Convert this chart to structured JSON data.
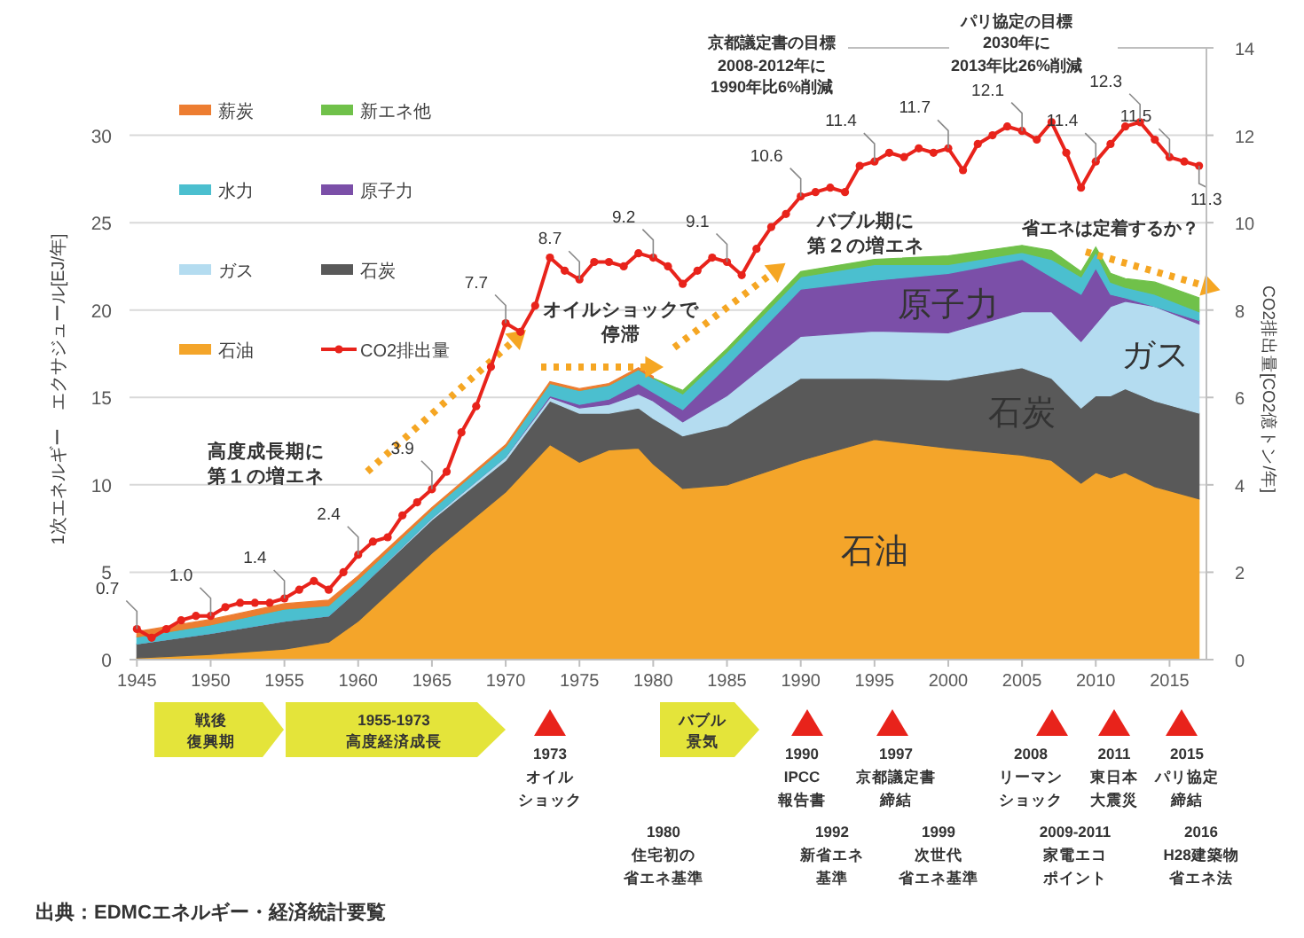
{
  "chart_data": {
    "type": "area",
    "stacked": true,
    "ylabel": "1次エネルギー　エクサジュール[EJ/年]",
    "y2label": "CO2排出量[CO2億トン/年]",
    "xlim": [
      1944.5,
      2017.5
    ],
    "xticks": [
      1945,
      1950,
      1955,
      1960,
      1965,
      1970,
      1975,
      1980,
      1985,
      1990,
      1995,
      2000,
      2005,
      2010,
      2015
    ],
    "ylim": [
      0,
      35
    ],
    "yticks": [
      0,
      5,
      10,
      15,
      20,
      25,
      30
    ],
    "y2lim": [
      0,
      14
    ],
    "y2ticks": [
      0,
      2,
      4,
      6,
      8,
      10,
      12,
      14
    ],
    "grid": "y",
    "legend": "top left",
    "x": [
      1945,
      1950,
      1955,
      1958,
      1960,
      1965,
      1970,
      1973,
      1975,
      1977,
      1979,
      1980,
      1982,
      1985,
      1990,
      1995,
      2000,
      2005,
      2007,
      2009,
      2010,
      2011,
      2012,
      2014,
      2017
    ],
    "series": [
      {
        "name": "石油",
        "color": "#f4a52a",
        "values": [
          0.1,
          0.3,
          0.6,
          1.0,
          2.2,
          6.1,
          9.6,
          12.3,
          11.3,
          12.0,
          12.1,
          11.2,
          9.8,
          10.0,
          11.4,
          12.6,
          12.1,
          11.7,
          11.4,
          10.1,
          10.7,
          10.4,
          10.7,
          9.9,
          9.2
        ]
      },
      {
        "name": "石炭",
        "color": "#595959",
        "values": [
          0.8,
          1.2,
          1.6,
          1.5,
          1.8,
          1.9,
          1.8,
          2.5,
          2.8,
          2.1,
          2.3,
          2.6,
          3.0,
          3.4,
          4.7,
          3.5,
          3.9,
          5.0,
          4.7,
          4.3,
          4.4,
          4.7,
          4.8,
          4.9,
          4.9
        ]
      },
      {
        "name": "ガス",
        "color": "#b4dcf0",
        "values": [
          0,
          0,
          0,
          0,
          0,
          0.1,
          0.2,
          0.2,
          0.3,
          0.5,
          0.8,
          1.0,
          0.8,
          1.7,
          2.4,
          2.7,
          2.7,
          3.2,
          3.8,
          3.8,
          4.1,
          5.1,
          5.0,
          5.4,
          5.1
        ]
      },
      {
        "name": "原子力",
        "color": "#7b4fa8",
        "values": [
          0,
          0,
          0,
          0,
          0,
          0,
          0,
          0.1,
          0.2,
          0.3,
          0.6,
          0.5,
          0.7,
          1.7,
          2.7,
          2.9,
          3.4,
          3.0,
          2.0,
          2.7,
          3.2,
          0.7,
          0.2,
          0,
          0.2
        ]
      },
      {
        "name": "水力",
        "color": "#4bbfcf",
        "values": [
          0.4,
          0.5,
          0.7,
          0.6,
          0.6,
          0.5,
          0.6,
          0.7,
          0.8,
          0.8,
          0.8,
          0.8,
          0.9,
          0.8,
          0.7,
          0.9,
          0.5,
          0.4,
          1.0,
          1.0,
          0.9,
          0.7,
          0.6,
          0.7,
          0.5
        ]
      },
      {
        "name": "新エネ他",
        "color": "#70c14a",
        "values": [
          0,
          0,
          0,
          0,
          0,
          0,
          0,
          0,
          0,
          0,
          0,
          0,
          0.2,
          0.2,
          0.3,
          0.3,
          0.5,
          0.4,
          0.5,
          0.3,
          0.3,
          0.5,
          0.5,
          0.7,
          0.8
        ]
      },
      {
        "name": "薪炭",
        "color": "#ed7d31",
        "values": [
          0.3,
          0.3,
          0.3,
          0.3,
          0.2,
          0.1,
          0.1,
          0.1,
          0.1,
          0.1,
          0.1,
          0.1,
          null,
          null,
          null,
          null,
          null,
          null,
          null,
          null,
          null,
          null,
          null,
          null,
          null
        ]
      },
      {
        "name": "CO2排出量",
        "type": "line",
        "axis": "y2",
        "color": "#e8231b",
        "marker": "circle",
        "x": [
          1945,
          1946,
          1947,
          1948,
          1949,
          1950,
          1951,
          1952,
          1953,
          1954,
          1955,
          1956,
          1957,
          1958,
          1959,
          1960,
          1961,
          1962,
          1963,
          1964,
          1965,
          1966,
          1967,
          1968,
          1969,
          1970,
          1971,
          1972,
          1973,
          1974,
          1975,
          1976,
          1977,
          1978,
          1979,
          1980,
          1981,
          1982,
          1983,
          1984,
          1985,
          1986,
          1987,
          1988,
          1989,
          1990,
          1991,
          1992,
          1993,
          1994,
          1995,
          1996,
          1997,
          1998,
          1999,
          2000,
          2001,
          2002,
          2003,
          2004,
          2005,
          2006,
          2007,
          2008,
          2009,
          2010,
          2011,
          2012,
          2013,
          2014,
          2015,
          2016,
          2017
        ],
        "values": [
          0.7,
          0.5,
          0.7,
          0.9,
          1.0,
          1.0,
          1.2,
          1.3,
          1.3,
          1.3,
          1.4,
          1.6,
          1.8,
          1.6,
          2.0,
          2.4,
          2.7,
          2.8,
          3.3,
          3.6,
          3.9,
          4.3,
          5.2,
          5.8,
          6.7,
          7.7,
          7.5,
          8.1,
          9.2,
          8.9,
          8.7,
          9.1,
          9.1,
          9.0,
          9.3,
          9.2,
          9.0,
          8.6,
          8.9,
          9.2,
          9.1,
          8.8,
          9.4,
          9.9,
          10.2,
          10.6,
          10.7,
          10.8,
          10.7,
          11.3,
          11.4,
          11.6,
          11.5,
          11.7,
          11.6,
          11.7,
          11.2,
          11.8,
          12.0,
          12.2,
          12.1,
          11.9,
          12.3,
          11.6,
          10.8,
          11.4,
          11.8,
          12.2,
          12.3,
          11.9,
          11.5,
          11.4,
          11.3
        ],
        "value_labels": [
          "0.7",
          null,
          null,
          null,
          null,
          "1.0",
          null,
          null,
          null,
          null,
          "1.4",
          null,
          null,
          null,
          null,
          "2.4",
          null,
          null,
          null,
          null,
          "3.9",
          null,
          null,
          null,
          null,
          "7.7",
          null,
          null,
          null,
          null,
          "8.7",
          null,
          null,
          null,
          null,
          "9.2",
          null,
          null,
          null,
          null,
          "9.1",
          null,
          null,
          null,
          null,
          "10.6",
          null,
          null,
          null,
          null,
          "11.4",
          null,
          null,
          null,
          null,
          "11.7",
          null,
          null,
          null,
          null,
          "12.1",
          null,
          null,
          null,
          null,
          "11.4",
          null,
          null,
          "12.3",
          null,
          "11.5",
          null,
          "11.3"
        ]
      }
    ],
    "annotations": [
      "京都議定書の目標",
      "2008-2012年に",
      "1990年比6%削減",
      "パリ協定の目標",
      "2030年に",
      "2013年比26%削減",
      "高度成長期に",
      "第１の増エネ",
      "オイルショックで",
      "停滞",
      "バブル期に",
      "第２の増エネ",
      "省エネは定着するか？",
      "戦後",
      "復興期",
      "1955-1973",
      "高度経済成長",
      "バブル",
      "景気",
      "1973",
      "オイル",
      "ショック",
      "1990",
      "IPCC",
      "報告書",
      "1997",
      "京都議定書",
      "締結",
      "2008",
      "リーマン",
      "ショック",
      "2011",
      "東日本",
      "大震災",
      "2015",
      "パリ協定",
      "締結",
      "1980",
      "住宅初の",
      "省エネ基準",
      "1992",
      "新省エネ",
      "基準",
      "1999",
      "次世代",
      "省エネ基準",
      "2009-2011",
      "家電エコ",
      "ポイント",
      "2016",
      "H28建築物",
      "省エネ法",
      "出典：EDMCエネルギー・経済統計要覧"
    ]
  }
}
